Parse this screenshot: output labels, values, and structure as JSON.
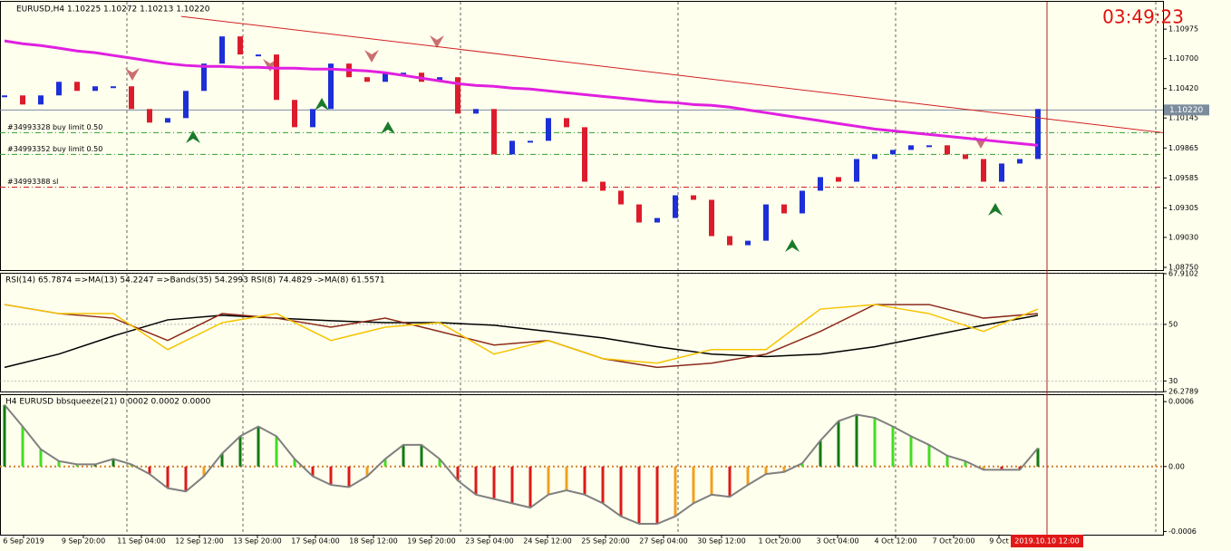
{
  "chart_data": [
    {
      "type": "candlestick",
      "title": "EURUSD,H4  1.10225 1.10272 1.10213 1.10220",
      "clock": "03:49:23",
      "up_color": "#1d2fd6",
      "down_color": "#dc1c2c",
      "ylim": [
        1.08725,
        1.1123
      ],
      "yticks": [
        1.10975,
        {
          "value": 1.107,
          "label": "1.10700"
        },
        {
          "value": 1.1042,
          "label": "1.10420"
        },
        1.10145,
        1.09865,
        1.09585,
        1.09305,
        {
          "value": 1.0903,
          "label": "1.09030"
        },
        {
          "value": 1.0875,
          "label": "1.08750"
        }
      ],
      "values": [
        1.10356,
        1.10271,
        1.10356,
        1.10483,
        1.10398,
        1.10441,
        1.10441,
        1.10229,
        1.10102,
        1.10144,
        1.10398,
        1.10653,
        1.10907,
        1.10738,
        1.10738,
        1.10314,
        1.10059,
        1.10229,
        1.10653,
        1.10526,
        1.10483,
        1.10568,
        1.10568,
        1.10483,
        1.10526,
        1.10186,
        1.10229,
        1.09805,
        1.09932,
        1.09932,
        1.10144,
        1.10059,
        1.0955,
        1.09466,
        1.09338,
        1.09169,
        1.09211,
        1.09423,
        1.09381,
        1.09042,
        1.08957,
        1.08999,
        1.09338,
        1.09254,
        1.09466,
        1.09593,
        1.0955,
        1.09762,
        1.09805,
        1.09847,
        1.0989,
        1.0989,
        1.09805,
        1.09762,
        1.0955,
        1.0972,
        1.09762,
        1.10229
      ],
      "ma": {
        "color": "#e020e0",
        "values": [
          1.10865,
          1.10839,
          1.10822,
          1.10797,
          1.10771,
          1.10755,
          1.10729,
          1.10704,
          1.10678,
          1.10653,
          1.10636,
          1.10627,
          1.10627,
          1.10619,
          1.10619,
          1.1061,
          1.1061,
          1.10602,
          1.10602,
          1.10593,
          1.10585,
          1.10568,
          1.10543,
          1.10517,
          1.10492,
          1.10466,
          1.10449,
          1.10441,
          1.10424,
          1.10415,
          1.10398,
          1.10381,
          1.10364,
          1.10347,
          1.10331,
          1.10314,
          1.10297,
          1.10288,
          1.10271,
          1.10263,
          1.10246,
          1.1022,
          1.10195,
          1.10169,
          1.10144,
          1.10119,
          1.10093,
          1.10068,
          1.10042,
          1.10025,
          1.10008,
          1.09991,
          1.09974,
          1.09957,
          1.0994,
          1.09923,
          1.09907,
          1.0989
        ]
      },
      "trendline": {
        "color": "#d02020",
        "x": [
          9.75,
          63.9
        ],
        "values": [
          1.11094,
          1.10008
        ]
      },
      "levels": [
        {
          "label": "#34993328 buy limit 0.50",
          "value": 1.10008,
          "color": "#2e9e2e"
        },
        {
          "label": "#34993352 buy limit 0.50",
          "value": 1.09805,
          "color": "#2e9e2e"
        },
        {
          "label": "#34993388 sl",
          "value": 1.09499,
          "color": "#d02020"
        }
      ],
      "last": {
        "value": 1.1022,
        "label": "1.10220",
        "color": "#7c8c9c"
      }
    },
    {
      "type": "line",
      "title": "RSI(14) 65.7874  =>MA(13) 54.2247  =>Bands(35) 54.2993  RSI(8) 74.4829  ->MA(8) 61.5571",
      "ylim": [
        26.2789,
        67.9102
      ],
      "yticks": [
        67.9102,
        50,
        30,
        26.2789
      ],
      "grid": true,
      "x": [
        0,
        3,
        6,
        9,
        12,
        15,
        18,
        21,
        24,
        27,
        30,
        33,
        36,
        39,
        42,
        45,
        48,
        51,
        54,
        57
      ],
      "lines": [
        {
          "color": "#000000",
          "values": [
            34.8,
            39.5,
            45.9,
            51.6,
            53.2,
            52.2,
            51.3,
            50.6,
            50.6,
            49.7,
            47.5,
            45.2,
            42.1,
            39.5,
            38.6,
            39.5,
            42.1,
            45.9,
            49.7,
            53.2
          ]
        },
        {
          "color": "#8b2a1a",
          "values": [
            57.0,
            53.8,
            52.2,
            44.3,
            53.8,
            52.2,
            49.0,
            52.2,
            47.5,
            42.7,
            44.3,
            37.9,
            34.8,
            36.3,
            39.5,
            47.5,
            57.0,
            57.0,
            52.2,
            53.8
          ]
        },
        {
          "color": "#f5c400",
          "values": [
            57.0,
            53.8,
            53.8,
            41.1,
            50.6,
            53.8,
            44.3,
            49.0,
            50.6,
            39.5,
            44.3,
            37.9,
            36.3,
            41.1,
            41.1,
            55.4,
            57.0,
            53.8,
            47.5,
            55.4
          ]
        }
      ]
    },
    {
      "type": "histogram",
      "title": "H4 EURUSD bbsqueeze(21) 0.0002 0.0002 0.0000",
      "ylim": [
        -0.00063,
        0.00066
      ],
      "yticks": [
        0.0006,
        {
          "value": 0,
          "label": "0.00"
        },
        -0.0006
      ],
      "pos_rising_color": "#127a12",
      "pos_falling_color": "#44dd22",
      "neg_falling_color": "#dd1a1a",
      "neg_rising_color": "#f0a020",
      "envelope_color": "#808080",
      "values": [
        0.00057,
        0.00037,
        0.00016,
        5e-05,
        2e-05,
        2e-05,
        7e-05,
        2e-05,
        -7e-05,
        -0.0002,
        -0.00023,
        -9e-05,
        0.00012,
        0.00028,
        0.00037,
        0.00028,
        7e-05,
        -9e-05,
        -0.00017,
        -0.00019,
        -9e-05,
        7e-05,
        0.0002,
        0.0002,
        7e-05,
        -0.00013,
        -0.00026,
        -0.0003,
        -0.00034,
        -0.00038,
        -0.00026,
        -0.00022,
        -0.00026,
        -0.00034,
        -0.00046,
        -0.00053,
        -0.00053,
        -0.00046,
        -0.00034,
        -0.00026,
        -0.00028,
        -0.00017,
        -7e-05,
        -5e-05,
        3e-05,
        0.00024,
        0.00042,
        0.00048,
        0.00045,
        0.00037,
        0.00028,
        0.0002,
        0.0001,
        5e-05,
        -3e-05,
        -3e-05,
        -3e-05,
        0.00017
      ]
    }
  ],
  "x_axis": {
    "xlim": [
      -0.25,
      63.9
    ],
    "xticks": [
      {
        "value": 1.05,
        "label": "6 Sep 2019"
      },
      {
        "value": 4.35,
        "label": "9 Sep 20:00"
      },
      {
        "value": 7.55,
        "label": "11 Sep 04:00"
      },
      {
        "value": 10.75,
        "label": "12 Sep 12:00"
      },
      {
        "value": 13.95,
        "label": "13 Sep 20:00"
      },
      {
        "value": 17.15,
        "label": "17 Sep 04:00"
      },
      {
        "value": 20.35,
        "label": "18 Sep 12:00"
      },
      {
        "value": 23.55,
        "label": "19 Sep 20:00"
      },
      {
        "value": 26.75,
        "label": "23 Sep 04:00"
      },
      {
        "value": 29.95,
        "label": "24 Sep 12:00"
      },
      {
        "value": 33.15,
        "label": "25 Sep 20:00"
      },
      {
        "value": 36.35,
        "label": "27 Sep 04:00"
      },
      {
        "value": 39.55,
        "label": "30 Sep 12:00"
      },
      {
        "value": 42.75,
        "label": "1 Oct 20:00"
      },
      {
        "value": 45.95,
        "label": "3 Oct 04:00"
      },
      {
        "value": 49.15,
        "label": "4 Oct 12:00"
      },
      {
        "value": 52.35,
        "label": "7 Oct 20:00"
      },
      {
        "value": 54.85,
        "label": "9 Oct"
      }
    ],
    "current": {
      "value": 57.5,
      "label": "2019.10.10 12:00"
    }
  }
}
